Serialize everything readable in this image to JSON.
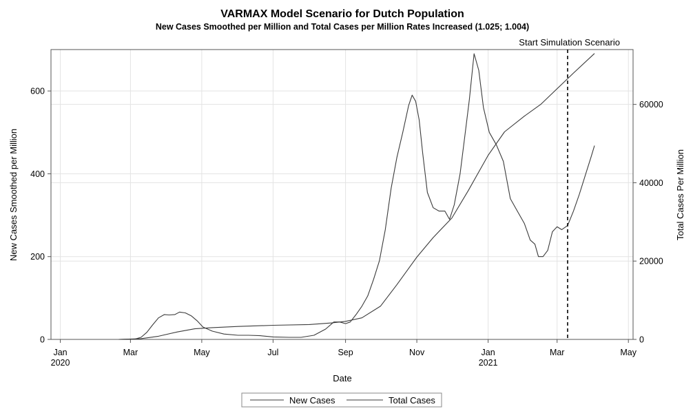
{
  "chart_data": {
    "type": "line",
    "title": "VARMAX Model Scenario for Dutch Population",
    "subtitle": "New Cases Smoothed per Million and Total Cases per Million Rates Increased (1.025; 1.004)",
    "xlabel": "Date",
    "ylabel_left": "New Cases Smoothed per Million",
    "ylabel_right": "Total Cases Per Million",
    "x_ticks": [
      {
        "date": "2020-01-01",
        "label": "Jan",
        "year": "2020"
      },
      {
        "date": "2020-03-01",
        "label": "Mar",
        "year": ""
      },
      {
        "date": "2020-05-01",
        "label": "May",
        "year": ""
      },
      {
        "date": "2020-07-01",
        "label": "Jul",
        "year": ""
      },
      {
        "date": "2020-09-01",
        "label": "Sep",
        "year": ""
      },
      {
        "date": "2020-11-01",
        "label": "Nov",
        "year": ""
      },
      {
        "date": "2021-01-01",
        "label": "Jan",
        "year": "2021"
      },
      {
        "date": "2021-03-01",
        "label": "Mar",
        "year": ""
      },
      {
        "date": "2021-05-01",
        "label": "May",
        "year": ""
      }
    ],
    "xlim": [
      "2019-12-24",
      "2021-05-05"
    ],
    "ylim_left": [
      0,
      700
    ],
    "yticks_left": [
      0,
      200,
      400,
      600
    ],
    "ylim_right": [
      0,
      74000
    ],
    "yticks_right": [
      0,
      20000,
      40000,
      60000
    ],
    "grid": true,
    "reference_line": {
      "date": "2021-03-10",
      "label": "Start Simulation Scenario",
      "style": "dashed"
    },
    "series": [
      {
        "name": "New Cases",
        "axis": "left",
        "points": [
          [
            "2020-02-20",
            0
          ],
          [
            "2020-03-05",
            1
          ],
          [
            "2020-03-10",
            5
          ],
          [
            "2020-03-15",
            17
          ],
          [
            "2020-03-20",
            35
          ],
          [
            "2020-03-25",
            52
          ],
          [
            "2020-03-30",
            60
          ],
          [
            "2020-04-03",
            59
          ],
          [
            "2020-04-08",
            60
          ],
          [
            "2020-04-12",
            66
          ],
          [
            "2020-04-17",
            64
          ],
          [
            "2020-04-22",
            57
          ],
          [
            "2020-04-27",
            45
          ],
          [
            "2020-05-02",
            30
          ],
          [
            "2020-05-10",
            20
          ],
          [
            "2020-05-20",
            13
          ],
          [
            "2020-06-01",
            10
          ],
          [
            "2020-06-10",
            10
          ],
          [
            "2020-06-20",
            9
          ],
          [
            "2020-07-01",
            6
          ],
          [
            "2020-07-15",
            5
          ],
          [
            "2020-07-25",
            5
          ],
          [
            "2020-08-05",
            10
          ],
          [
            "2020-08-15",
            25
          ],
          [
            "2020-08-22",
            42
          ],
          [
            "2020-08-27",
            42
          ],
          [
            "2020-09-01",
            38
          ],
          [
            "2020-09-05",
            42
          ],
          [
            "2020-09-10",
            60
          ],
          [
            "2020-09-15",
            80
          ],
          [
            "2020-09-20",
            105
          ],
          [
            "2020-09-25",
            145
          ],
          [
            "2020-09-30",
            190
          ],
          [
            "2020-10-05",
            265
          ],
          [
            "2020-10-10",
            365
          ],
          [
            "2020-10-15",
            440
          ],
          [
            "2020-10-20",
            500
          ],
          [
            "2020-10-25",
            565
          ],
          [
            "2020-10-28",
            590
          ],
          [
            "2020-10-31",
            575
          ],
          [
            "2020-11-03",
            530
          ],
          [
            "2020-11-06",
            450
          ],
          [
            "2020-11-10",
            355
          ],
          [
            "2020-11-15",
            318
          ],
          [
            "2020-11-20",
            310
          ],
          [
            "2020-11-25",
            310
          ],
          [
            "2020-11-29",
            290
          ],
          [
            "2020-12-03",
            325
          ],
          [
            "2020-12-08",
            400
          ],
          [
            "2020-12-12",
            490
          ],
          [
            "2020-12-16",
            580
          ],
          [
            "2020-12-20",
            690
          ],
          [
            "2020-12-24",
            650
          ],
          [
            "2020-12-28",
            560
          ],
          [
            "2021-01-02",
            500
          ],
          [
            "2021-01-08",
            470
          ],
          [
            "2021-01-14",
            430
          ],
          [
            "2021-01-20",
            340
          ],
          [
            "2021-01-26",
            310
          ],
          [
            "2021-02-01",
            280
          ],
          [
            "2021-02-06",
            240
          ],
          [
            "2021-02-10",
            230
          ],
          [
            "2021-02-13",
            200
          ],
          [
            "2021-02-17",
            200
          ],
          [
            "2021-02-21",
            215
          ],
          [
            "2021-02-25",
            260
          ],
          [
            "2021-03-01",
            272
          ],
          [
            "2021-03-05",
            265
          ],
          [
            "2021-03-10",
            275
          ],
          [
            "2021-03-15",
            310
          ],
          [
            "2021-03-20",
            350
          ],
          [
            "2021-03-25",
            395
          ],
          [
            "2021-03-30",
            440
          ],
          [
            "2021-04-02",
            468
          ]
        ]
      },
      {
        "name": "Total Cases",
        "axis": "right",
        "points": [
          [
            "2020-02-20",
            0
          ],
          [
            "2020-03-10",
            200
          ],
          [
            "2020-03-25",
            800
          ],
          [
            "2020-04-10",
            1900
          ],
          [
            "2020-04-25",
            2700
          ],
          [
            "2020-05-10",
            3000
          ],
          [
            "2020-06-01",
            3300
          ],
          [
            "2020-07-01",
            3600
          ],
          [
            "2020-08-01",
            3800
          ],
          [
            "2020-08-20",
            4200
          ],
          [
            "2020-09-01",
            4600
          ],
          [
            "2020-09-15",
            5500
          ],
          [
            "2020-10-01",
            8500
          ],
          [
            "2020-10-15",
            14000
          ],
          [
            "2020-11-01",
            21000
          ],
          [
            "2020-11-15",
            26000
          ],
          [
            "2020-12-01",
            31000
          ],
          [
            "2020-12-15",
            38000
          ],
          [
            "2021-01-01",
            47000
          ],
          [
            "2021-01-15",
            53000
          ],
          [
            "2021-02-01",
            57000
          ],
          [
            "2021-02-15",
            60000
          ],
          [
            "2021-03-01",
            64000
          ],
          [
            "2021-03-15",
            68000
          ],
          [
            "2021-04-02",
            73000
          ]
        ]
      }
    ],
    "legend": {
      "position": "bottom-center",
      "entries": [
        "New Cases",
        "Total Cases"
      ]
    }
  }
}
